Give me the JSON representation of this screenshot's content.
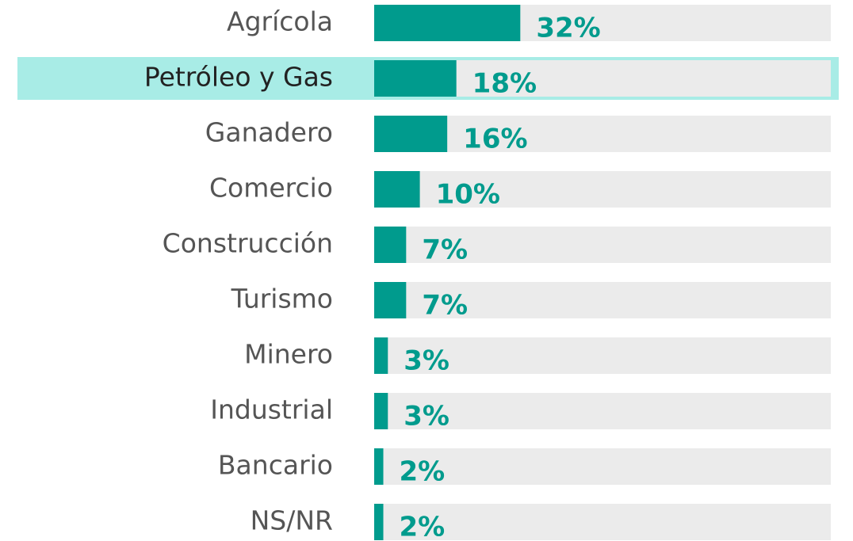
{
  "chart_data": {
    "type": "hbar",
    "categories": [
      "Agrícola",
      "Petróleo y Gas",
      "Ganadero",
      "Comercio",
      "Construcción",
      "Turismo",
      "Minero",
      "Industrial",
      "Bancario",
      "NS/NR"
    ],
    "values": [
      32,
      18,
      16,
      10,
      7,
      7,
      3,
      3,
      2,
      2
    ],
    "value_labels": [
      "32%",
      "18%",
      "16%",
      "10%",
      "7%",
      "7%",
      "3%",
      "3%",
      "2%",
      "2%"
    ],
    "xlim": [
      0,
      100
    ],
    "color": "#009b8d",
    "track_color": "#ebebeb",
    "highlight": 1,
    "highlight_color": "#a8ece6"
  }
}
